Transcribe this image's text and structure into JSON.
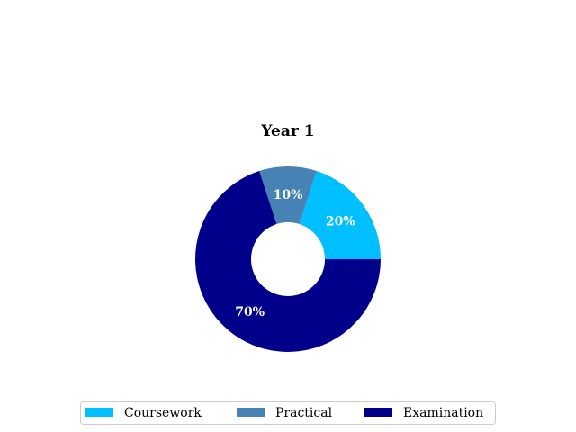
{
  "chart_data": {
    "type": "pie",
    "title": "Year 1",
    "donut": true,
    "start_angle_deg": 0,
    "direction": "counterclockwise",
    "legend_position": "bottom",
    "slices": [
      {
        "label": "Coursework",
        "value": 20,
        "display": "20%",
        "color": "#00BFFF"
      },
      {
        "label": "Practical",
        "value": 10,
        "display": "10%",
        "color": "#4682B4"
      },
      {
        "label": "Examination",
        "value": 70,
        "display": "70%",
        "color": "#00008B"
      }
    ]
  }
}
